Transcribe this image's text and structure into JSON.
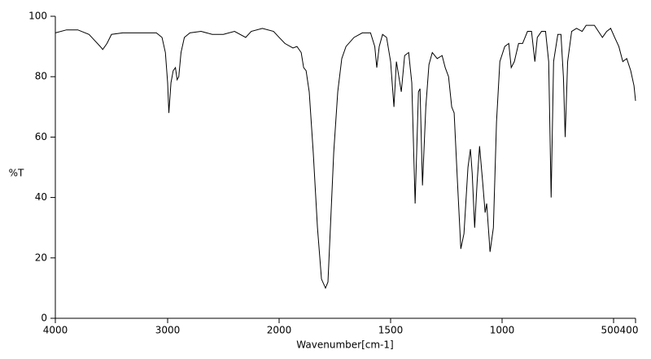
{
  "chart_data": {
    "type": "line",
    "xlabel": "Wavenumber[cm-1]",
    "ylabel": "%T",
    "xlim": [
      4000,
      400
    ],
    "xticks": [
      4000,
      3000,
      2000,
      1500,
      1000,
      500,
      400
    ],
    "ylim": [
      0,
      100
    ],
    "yticks": [
      0,
      20,
      40,
      60,
      80,
      100
    ],
    "x": [
      4000,
      3900,
      3800,
      3700,
      3650,
      3600,
      3578,
      3540,
      3500,
      3400,
      3200,
      3100,
      3050,
      3020,
      3000,
      2989,
      2970,
      2950,
      2930,
      2915,
      2900,
      2880,
      2850,
      2800,
      2700,
      2600,
      2500,
      2400,
      2300,
      2250,
      2150,
      2050,
      2000,
      1974,
      1938,
      1920,
      1901,
      1890,
      1879,
      1865,
      1847,
      1828,
      1810,
      1792,
      1781,
      1770,
      1755,
      1737,
      1719,
      1700,
      1664,
      1627,
      1590,
      1571,
      1562,
      1551,
      1536,
      1518,
      1500,
      1485,
      1474,
      1463,
      1452,
      1437,
      1419,
      1405,
      1390,
      1375,
      1368,
      1357,
      1342,
      1328,
      1313,
      1291,
      1269,
      1255,
      1240,
      1226,
      1215,
      1200,
      1185,
      1171,
      1153,
      1142,
      1134,
      1123,
      1112,
      1101,
      1087,
      1076,
      1069,
      1054,
      1039,
      1025,
      1010,
      988,
      970,
      959,
      945,
      926,
      908,
      886,
      868,
      853,
      842,
      823,
      805,
      791,
      780,
      769,
      750,
      736,
      725,
      717,
      706,
      688,
      666,
      641,
      623,
      586,
      550,
      531,
      513,
      495,
      476,
      458,
      440,
      422,
      407,
      400
    ],
    "series": [
      {
        "color": "#000000",
        "values": [
          94.5,
          95.5,
          95.5,
          94,
          92,
          90,
          89,
          91,
          94,
          94.5,
          94.5,
          94.5,
          93,
          88,
          78,
          68,
          78,
          82,
          83,
          79,
          80,
          88,
          93,
          94.5,
          95,
          94,
          94,
          95,
          93,
          95,
          96,
          95,
          93,
          91,
          89.5,
          90,
          88,
          83,
          82,
          75,
          55,
          30,
          13,
          10,
          12,
          30,
          55,
          75,
          86,
          90,
          93,
          94.5,
          94.5,
          90,
          83,
          90,
          94,
          93,
          85,
          70,
          85,
          80,
          75,
          87,
          88,
          78,
          38,
          75,
          76,
          44,
          70,
          84,
          88,
          86,
          87,
          83,
          80,
          70,
          68,
          45,
          23,
          28,
          50,
          56,
          48,
          30,
          45,
          57,
          45,
          35,
          38,
          22,
          30,
          65,
          85,
          90,
          91,
          83,
          85,
          91,
          91,
          95,
          95,
          85,
          93,
          95,
          95,
          85,
          40,
          85,
          94,
          94,
          80,
          60,
          85,
          95,
          96,
          95,
          97,
          97,
          93,
          95,
          96,
          93,
          90,
          85,
          86,
          82,
          77,
          72
        ]
      }
    ]
  }
}
